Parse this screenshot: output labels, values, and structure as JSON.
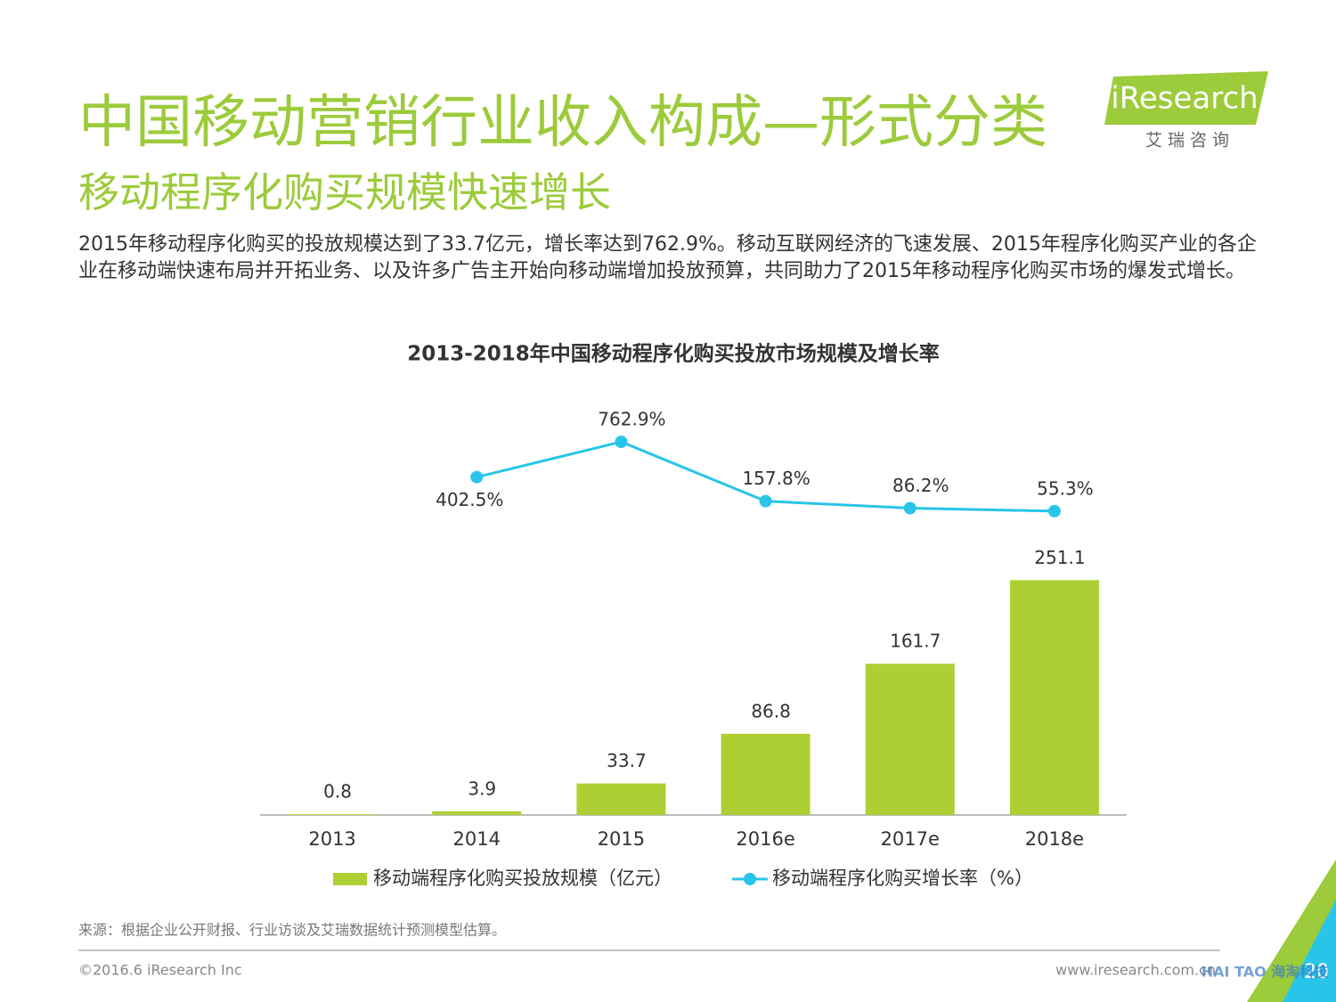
{
  "header": {
    "title": "中国移动营销行业收入构成—形式分类",
    "subtitle": "移动程序化购买规模快速增长",
    "paragraph": "2015年移动程序化购买的投放规模达到了33.7亿元，增长率达到762.9%。移动互联网经济的飞速发展、2015年程序化购买产业的各企业在移动端快速布局并开拓业务、以及许多广告主开始向移动端增加投放预算，共同助力了2015年移动程序化购买市场的爆发式增长。",
    "logo": "iResearch",
    "logo_cn": "艾 瑞 咨 询"
  },
  "chart_data": {
    "type": "bar",
    "title": "2013-2018年中国移动程序化购买投放市场规模及增长率",
    "categories": [
      "2013",
      "2014",
      "2015",
      "2016e",
      "2017e",
      "2018e"
    ],
    "ylim": [
      0,
      300
    ],
    "y2lim": [
      0,
      1000
    ],
    "series": [
      {
        "name": "移动端程序化购买投放规模（亿元）",
        "type": "bar",
        "color": "#aecf33",
        "values": [
          0.8,
          3.9,
          33.7,
          86.8,
          161.7,
          251.1
        ]
      },
      {
        "name": "移动端程序化购买增长率（%）",
        "type": "line",
        "axis": "y2",
        "color": "#29c5e8",
        "values": [
          null,
          402.5,
          762.9,
          157.8,
          86.2,
          55.3
        ],
        "value_labels": [
          null,
          "402.5%",
          "762.9%",
          "157.8%",
          "86.2%",
          "55.3%"
        ]
      }
    ]
  },
  "footer": {
    "source": "来源：根据企业公开财报、行业访谈及艾瑞数据统计预测模型估算。",
    "copyright": "©2016.6 iResearch Inc",
    "url": "www.iresearch.com.cn",
    "page": "20",
    "watermark": "HAI TAO 海淘科技"
  }
}
